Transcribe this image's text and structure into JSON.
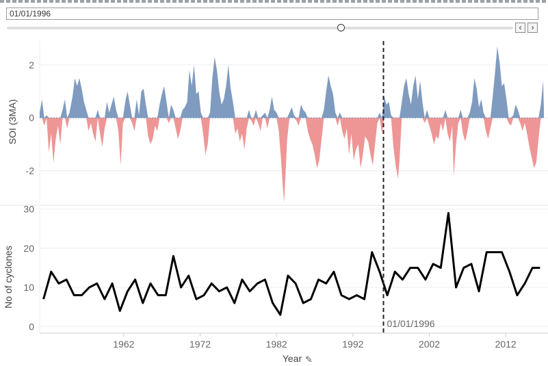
{
  "date_filter": {
    "value": "01/01/1996",
    "slider_fraction": 0.66,
    "prev_icon": "‹",
    "next_icon": "›"
  },
  "colors": {
    "positive": "#7f9bbf",
    "negative": "#ee9696",
    "line": "#000000",
    "grid": "#eeeeee"
  },
  "chart_data": [
    {
      "type": "area",
      "ylabel": "SOI (3MA)",
      "ylim": [
        -3.2,
        2.9
      ],
      "yticks": [
        -2,
        0,
        2
      ],
      "x_range": [
        1951,
        2017
      ],
      "series": [
        {
          "values": [
            [
              1951.0,
              0.2
            ],
            [
              1951.3,
              0.7
            ],
            [
              1951.6,
              -0.3
            ],
            [
              1951.9,
              0.1
            ],
            [
              1952.2,
              -1.3
            ],
            [
              1952.5,
              -0.6
            ],
            [
              1952.8,
              -1.7
            ],
            [
              1953.1,
              -0.8
            ],
            [
              1953.4,
              -0.3
            ],
            [
              1953.7,
              -1.0
            ],
            [
              1954.0,
              0.3
            ],
            [
              1954.3,
              0.7
            ],
            [
              1954.6,
              -0.4
            ],
            [
              1954.9,
              0.2
            ],
            [
              1955.3,
              0.8
            ],
            [
              1955.6,
              1.5
            ],
            [
              1955.9,
              1.2
            ],
            [
              1956.2,
              1.5
            ],
            [
              1956.5,
              1.1
            ],
            [
              1956.8,
              0.6
            ],
            [
              1957.1,
              0.3
            ],
            [
              1957.4,
              -0.5
            ],
            [
              1957.7,
              -0.2
            ],
            [
              1958.0,
              -0.6
            ],
            [
              1958.3,
              -0.9
            ],
            [
              1958.6,
              0.3
            ],
            [
              1958.9,
              -0.6
            ],
            [
              1959.2,
              -1.1
            ],
            [
              1959.5,
              -0.4
            ],
            [
              1959.8,
              0.6
            ],
            [
              1960.1,
              0.2
            ],
            [
              1960.4,
              0.5
            ],
            [
              1960.7,
              0.8
            ],
            [
              1961.0,
              0.3
            ],
            [
              1961.3,
              -0.5
            ],
            [
              1961.6,
              -1.8
            ],
            [
              1961.9,
              -0.2
            ],
            [
              1962.2,
              0.6
            ],
            [
              1962.5,
              1.0
            ],
            [
              1962.8,
              0.5
            ],
            [
              1963.1,
              -0.2
            ],
            [
              1963.4,
              -0.5
            ],
            [
              1963.7,
              0.7
            ],
            [
              1964.0,
              0.1
            ],
            [
              1964.3,
              1.0
            ],
            [
              1964.6,
              1.1
            ],
            [
              1964.9,
              0.5
            ],
            [
              1965.2,
              -0.7
            ],
            [
              1965.5,
              -1.0
            ],
            [
              1965.8,
              -0.8
            ],
            [
              1966.1,
              -0.3
            ],
            [
              1966.4,
              -0.5
            ],
            [
              1966.7,
              0.5
            ],
            [
              1967.0,
              0.9
            ],
            [
              1967.3,
              1.2
            ],
            [
              1967.6,
              0.6
            ],
            [
              1967.9,
              -0.2
            ],
            [
              1968.2,
              0.5
            ],
            [
              1968.5,
              0.3
            ],
            [
              1968.8,
              -0.4
            ],
            [
              1969.1,
              -0.8
            ],
            [
              1969.4,
              -0.5
            ],
            [
              1969.7,
              0.3
            ],
            [
              1970.0,
              0.4
            ],
            [
              1970.3,
              0.6
            ],
            [
              1970.6,
              1.8
            ],
            [
              1970.9,
              1.2
            ],
            [
              1971.2,
              2.0
            ],
            [
              1971.5,
              0.9
            ],
            [
              1971.8,
              1.0
            ],
            [
              1972.1,
              0.2
            ],
            [
              1972.4,
              -0.6
            ],
            [
              1972.7,
              -1.4
            ],
            [
              1973.0,
              -1.0
            ],
            [
              1973.3,
              0.2
            ],
            [
              1973.6,
              1.5
            ],
            [
              1973.9,
              2.3
            ],
            [
              1974.2,
              1.8
            ],
            [
              1974.5,
              1.0
            ],
            [
              1974.8,
              0.5
            ],
            [
              1975.1,
              0.7
            ],
            [
              1975.4,
              1.2
            ],
            [
              1975.7,
              2.0
            ],
            [
              1976.0,
              1.1
            ],
            [
              1976.3,
              0.6
            ],
            [
              1976.6,
              -0.6
            ],
            [
              1976.9,
              -0.4
            ],
            [
              1977.2,
              -0.9
            ],
            [
              1977.5,
              -0.6
            ],
            [
              1977.8,
              -1.2
            ],
            [
              1978.1,
              -0.4
            ],
            [
              1978.4,
              0.3
            ],
            [
              1978.7,
              -0.1
            ],
            [
              1979.0,
              -0.3
            ],
            [
              1979.3,
              0.3
            ],
            [
              1979.6,
              -0.2
            ],
            [
              1979.9,
              -0.5
            ],
            [
              1980.2,
              0.1
            ],
            [
              1980.5,
              0.2
            ],
            [
              1980.8,
              -0.4
            ],
            [
              1981.1,
              0.3
            ],
            [
              1981.4,
              0.8
            ],
            [
              1981.7,
              0.3
            ],
            [
              1982.0,
              0.2
            ],
            [
              1982.3,
              -0.5
            ],
            [
              1982.6,
              -1.6
            ],
            [
              1982.8,
              -2.5
            ],
            [
              1983.0,
              -3.2
            ],
            [
              1983.2,
              -2.0
            ],
            [
              1983.4,
              -0.8
            ],
            [
              1983.7,
              0.2
            ],
            [
              1984.0,
              0.4
            ],
            [
              1984.3,
              0.1
            ],
            [
              1984.6,
              -0.1
            ],
            [
              1984.9,
              -0.3
            ],
            [
              1985.2,
              0.5
            ],
            [
              1985.5,
              0.3
            ],
            [
              1985.8,
              0.2
            ],
            [
              1986.1,
              -0.5
            ],
            [
              1986.4,
              -0.8
            ],
            [
              1986.7,
              -1.0
            ],
            [
              1987.0,
              -1.4
            ],
            [
              1987.3,
              -1.9
            ],
            [
              1987.6,
              -1.6
            ],
            [
              1987.9,
              -0.8
            ],
            [
              1988.2,
              0.3
            ],
            [
              1988.5,
              1.0
            ],
            [
              1988.8,
              1.6
            ],
            [
              1989.1,
              1.2
            ],
            [
              1989.4,
              0.9
            ],
            [
              1989.7,
              0.2
            ],
            [
              1990.0,
              -0.3
            ],
            [
              1990.3,
              0.2
            ],
            [
              1990.6,
              -0.5
            ],
            [
              1990.9,
              -0.8
            ],
            [
              1991.2,
              -0.4
            ],
            [
              1991.5,
              -1.4
            ],
            [
              1991.8,
              -0.6
            ],
            [
              1992.1,
              -1.6
            ],
            [
              1992.4,
              -1.2
            ],
            [
              1992.7,
              -1.0
            ],
            [
              1993.0,
              -1.9
            ],
            [
              1993.3,
              -1.4
            ],
            [
              1993.6,
              -0.7
            ],
            [
              1994.0,
              -0.9
            ],
            [
              1994.3,
              -1.4
            ],
            [
              1994.6,
              -1.8
            ],
            [
              1994.9,
              -1.0
            ],
            [
              1995.2,
              -0.2
            ],
            [
              1995.5,
              0.2
            ],
            [
              1995.8,
              -0.6
            ],
            [
              1996.1,
              0.8
            ],
            [
              1996.4,
              0.5
            ],
            [
              1996.7,
              0.6
            ],
            [
              1997.0,
              0.1
            ],
            [
              1997.3,
              -1.1
            ],
            [
              1997.6,
              -1.8
            ],
            [
              1997.9,
              -2.3
            ],
            [
              1998.1,
              -1.6
            ],
            [
              1998.4,
              0.6
            ],
            [
              1998.7,
              1.2
            ],
            [
              1999.0,
              1.5
            ],
            [
              1999.3,
              0.9
            ],
            [
              1999.6,
              0.5
            ],
            [
              1999.9,
              1.2
            ],
            [
              2000.2,
              1.6
            ],
            [
              2000.5,
              0.7
            ],
            [
              2000.8,
              1.4
            ],
            [
              2001.1,
              0.6
            ],
            [
              2001.4,
              -0.2
            ],
            [
              2001.7,
              0.3
            ],
            [
              2002.0,
              -0.3
            ],
            [
              2002.3,
              -0.6
            ],
            [
              2002.6,
              -1.0
            ],
            [
              2002.9,
              -0.7
            ],
            [
              2003.2,
              -0.8
            ],
            [
              2003.5,
              -0.2
            ],
            [
              2003.8,
              -0.5
            ],
            [
              2004.1,
              0.3
            ],
            [
              2004.4,
              -0.6
            ],
            [
              2004.7,
              -0.9
            ],
            [
              2005.0,
              -0.3
            ],
            [
              2005.2,
              -2.2
            ],
            [
              2005.5,
              -1.0
            ],
            [
              2005.8,
              -0.2
            ],
            [
              2006.1,
              0.3
            ],
            [
              2006.4,
              -0.6
            ],
            [
              2006.7,
              -0.9
            ],
            [
              2007.0,
              -0.5
            ],
            [
              2007.3,
              0.2
            ],
            [
              2007.6,
              0.6
            ],
            [
              2007.9,
              1.5
            ],
            [
              2008.2,
              1.1
            ],
            [
              2008.5,
              0.4
            ],
            [
              2008.8,
              0.7
            ],
            [
              2009.1,
              0.2
            ],
            [
              2009.4,
              -0.5
            ],
            [
              2009.7,
              -0.8
            ],
            [
              2010.0,
              -0.4
            ],
            [
              2010.3,
              0.8
            ],
            [
              2010.6,
              1.7
            ],
            [
              2010.9,
              2.7
            ],
            [
              2011.2,
              2.1
            ],
            [
              2011.5,
              1.2
            ],
            [
              2011.8,
              1.3
            ],
            [
              2012.1,
              0.7
            ],
            [
              2012.4,
              -0.2
            ],
            [
              2012.7,
              -0.3
            ],
            [
              2013.0,
              0.1
            ],
            [
              2013.3,
              0.5
            ],
            [
              2013.6,
              0.3
            ],
            [
              2013.9,
              -0.2
            ],
            [
              2014.2,
              -0.5
            ],
            [
              2014.5,
              -0.2
            ],
            [
              2014.8,
              -0.6
            ],
            [
              2015.1,
              -1.1
            ],
            [
              2015.4,
              -1.5
            ],
            [
              2015.7,
              -1.9
            ],
            [
              2016.0,
              -1.7
            ],
            [
              2016.3,
              -0.8
            ],
            [
              2016.6,
              0.5
            ],
            [
              2016.9,
              1.4
            ],
            [
              2017.0,
              0.3
            ]
          ]
        }
      ]
    },
    {
      "type": "line",
      "ylabel": "No of cyclones",
      "xlabel": "Year",
      "ylim": [
        0,
        30
      ],
      "yticks": [
        0,
        10,
        20,
        30
      ],
      "x_range": [
        1951,
        2017
      ],
      "xtick_labels": [
        "1962",
        "1972",
        "1982",
        "1992",
        "2002",
        "2012"
      ],
      "xticks": [
        1962,
        1972,
        1982,
        1992,
        2002,
        2012
      ],
      "series": [
        {
          "x": [
            1951,
            1952,
            1953,
            1954,
            1955,
            1956,
            1957,
            1958,
            1959,
            1960,
            1961,
            1962,
            1963,
            1964,
            1965,
            1966,
            1967,
            1968,
            1969,
            1970,
            1971,
            1972,
            1973,
            1974,
            1975,
            1976,
            1977,
            1978,
            1979,
            1980,
            1981,
            1982,
            1983,
            1984,
            1985,
            1986,
            1987,
            1988,
            1989,
            1990,
            1991,
            1992,
            1993,
            1994,
            1995,
            1996,
            1997,
            1998,
            1999,
            2000,
            2001,
            2002,
            2003,
            2004,
            2005,
            2006,
            2007,
            2008,
            2009,
            2010,
            2011,
            2012,
            2013,
            2014,
            2015,
            2016
          ],
          "values": [
            7,
            14,
            11,
            12,
            8,
            8,
            10,
            11,
            7,
            11,
            4,
            9,
            12,
            6,
            11,
            8,
            8,
            18,
            10,
            13,
            7,
            8,
            11,
            9,
            10,
            6,
            12,
            9,
            11,
            12,
            6,
            3,
            13,
            11,
            6,
            7,
            12,
            11,
            14,
            8,
            7,
            8,
            7,
            19,
            14,
            8,
            14,
            12,
            15,
            15,
            12,
            16,
            15,
            29,
            10,
            15,
            16,
            9,
            19,
            19,
            19,
            14,
            8,
            11,
            15,
            15
          ]
        }
      ],
      "annotation": {
        "x": 1996,
        "label": "01/01/1996"
      }
    }
  ]
}
